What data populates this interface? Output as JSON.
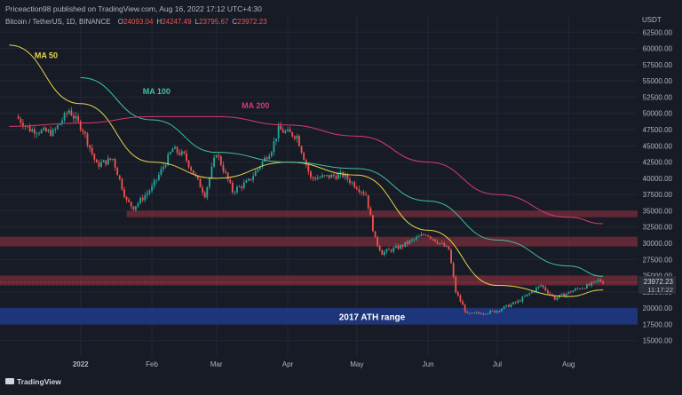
{
  "header": {
    "published_by": "Priceaction98 published on TradingView.com, Aug 16, 2022 17:12 UTC+4:30",
    "symbol": "Bitcoin / TetherUS, 1D, BINANCE",
    "ohlc": [
      {
        "key": "O",
        "value": "24093.04"
      },
      {
        "key": "H",
        "value": "24247.49"
      },
      {
        "key": "L",
        "value": "23795.67"
      },
      {
        "key": "C",
        "value": "23972.23"
      }
    ]
  },
  "footer": {
    "brand": "TradingView"
  },
  "colors": {
    "background": "#171b26",
    "up": "#26a69a",
    "down": "#ef5350",
    "ma50": "#e8d44d",
    "ma100": "#3ec39b",
    "ma200": "#d63a6e",
    "zone_red": "#7a2e3b",
    "zone_blue": "#1e3a8a"
  },
  "chart_data": {
    "type": "candlestick",
    "currency": "USDT",
    "ylim": [
      12500,
      65000
    ],
    "y_ticks": [
      15000,
      17500,
      20000,
      22500,
      25000,
      27500,
      30000,
      32500,
      35000,
      37500,
      40000,
      42500,
      45000,
      47500,
      50000,
      52500,
      55000,
      57500,
      60000,
      62500
    ],
    "x_range": [
      "2021-11-27",
      "2022-08-31"
    ],
    "x_ticks": [
      {
        "date": "2022-01-01",
        "label": "2022"
      },
      {
        "date": "2022-02-01",
        "label": "Feb"
      },
      {
        "date": "2022-03-01",
        "label": "Mar"
      },
      {
        "date": "2022-04-01",
        "label": "Apr"
      },
      {
        "date": "2022-05-01",
        "label": "May"
      },
      {
        "date": "2022-06-01",
        "label": "Jun"
      },
      {
        "date": "2022-07-01",
        "label": "Jul"
      },
      {
        "date": "2022-08-01",
        "label": "Aug"
      }
    ],
    "price_path": [
      [
        "2021-12-04",
        49500
      ],
      [
        "2021-12-10",
        47500
      ],
      [
        "2021-12-20",
        47000
      ],
      [
        "2021-12-27",
        50500
      ],
      [
        "2022-01-02",
        47500
      ],
      [
        "2022-01-08",
        42000
      ],
      [
        "2022-01-15",
        43000
      ],
      [
        "2022-01-21",
        36500
      ],
      [
        "2022-01-24",
        35500
      ],
      [
        "2022-02-01",
        38500
      ],
      [
        "2022-02-10",
        44500
      ],
      [
        "2022-02-15",
        43500
      ],
      [
        "2022-02-24",
        37500
      ],
      [
        "2022-03-01",
        44000
      ],
      [
        "2022-03-08",
        38000
      ],
      [
        "2022-03-15",
        39500
      ],
      [
        "2022-03-25",
        44500
      ],
      [
        "2022-03-28",
        47500
      ],
      [
        "2022-04-05",
        46500
      ],
      [
        "2022-04-11",
        40000
      ],
      [
        "2022-04-25",
        40500
      ],
      [
        "2022-05-05",
        37500
      ],
      [
        "2022-05-09",
        30500
      ],
      [
        "2022-05-12",
        28500
      ],
      [
        "2022-05-20",
        29500
      ],
      [
        "2022-05-31",
        31500
      ],
      [
        "2022-06-10",
        29000
      ],
      [
        "2022-06-13",
        22500
      ],
      [
        "2022-06-18",
        19000
      ],
      [
        "2022-06-30",
        19500
      ],
      [
        "2022-07-10",
        21000
      ],
      [
        "2022-07-20",
        23500
      ],
      [
        "2022-07-26",
        21500
      ],
      [
        "2022-08-05",
        23000
      ],
      [
        "2022-08-10",
        23500
      ],
      [
        "2022-08-14",
        24300
      ],
      [
        "2022-08-16",
        23972
      ]
    ],
    "ma_lines": [
      {
        "name": "MA 50",
        "points": [
          [
            "2021-12-01",
            60500
          ],
          [
            "2022-01-01",
            51500
          ],
          [
            "2022-02-01",
            42500
          ],
          [
            "2022-03-01",
            40000
          ],
          [
            "2022-04-01",
            42500
          ],
          [
            "2022-05-01",
            40500
          ],
          [
            "2022-06-01",
            32000
          ],
          [
            "2022-07-01",
            23500
          ],
          [
            "2022-08-01",
            21800
          ],
          [
            "2022-08-16",
            22800
          ]
        ]
      },
      {
        "name": "MA 100",
        "points": [
          [
            "2022-01-01",
            55500
          ],
          [
            "2022-02-01",
            49000
          ],
          [
            "2022-03-01",
            44000
          ],
          [
            "2022-04-01",
            42500
          ],
          [
            "2022-05-01",
            41500
          ],
          [
            "2022-06-01",
            36500
          ],
          [
            "2022-07-01",
            30500
          ],
          [
            "2022-08-01",
            26500
          ],
          [
            "2022-08-16",
            24900
          ]
        ]
      },
      {
        "name": "MA 200",
        "points": [
          [
            "2021-12-01",
            48000
          ],
          [
            "2022-01-01",
            48500
          ],
          [
            "2022-02-01",
            49500
          ],
          [
            "2022-03-01",
            49500
          ],
          [
            "2022-04-01",
            48200
          ],
          [
            "2022-05-01",
            46500
          ],
          [
            "2022-06-01",
            42500
          ],
          [
            "2022-07-01",
            37500
          ],
          [
            "2022-08-01",
            34000
          ],
          [
            "2022-08-16",
            33000
          ]
        ]
      }
    ],
    "zones": [
      {
        "label": "",
        "from": 34000,
        "to": 35000,
        "start": "2022-01-21",
        "color": "red"
      },
      {
        "label": "",
        "from": 29500,
        "to": 31000,
        "start": "2021-11-27",
        "color": "red"
      },
      {
        "label": "",
        "from": 23500,
        "to": 25000,
        "start": "2021-11-27",
        "color": "red"
      },
      {
        "label": "2017 ATH range",
        "from": 17500,
        "to": 20000,
        "start": "2021-11-27",
        "color": "blue"
      }
    ],
    "price_labels": {
      "last": "23972.23",
      "countdown": "11:17:22"
    }
  }
}
